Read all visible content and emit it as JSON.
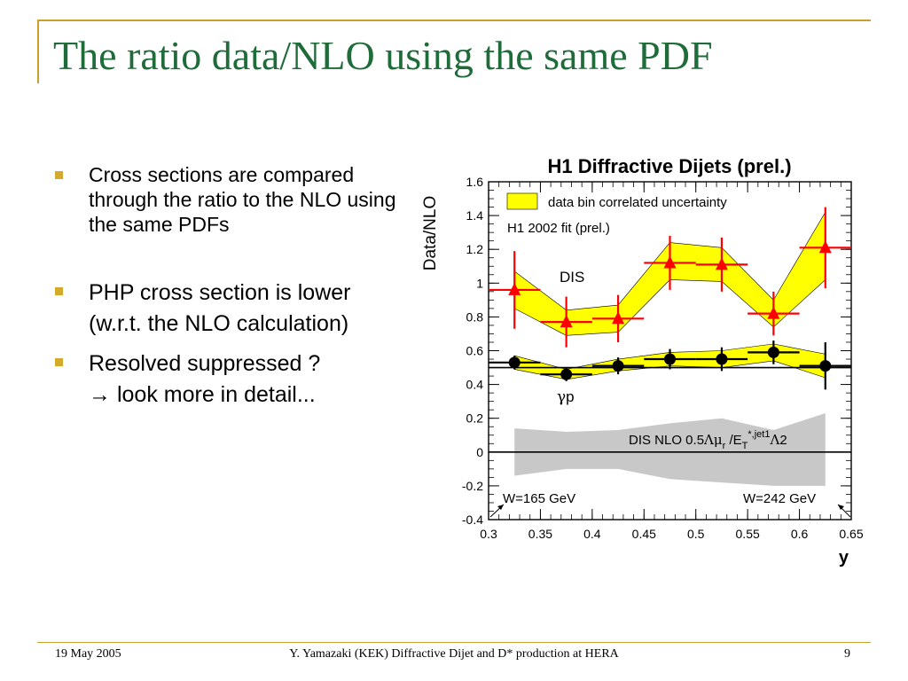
{
  "slide": {
    "title": "The ratio data/NLO using the same PDF",
    "bullets": [
      "Cross sections are compared through the ratio to the NLO using the same PDFs",
      "PHP cross section is lower (w.r.t. the NLO calculation)",
      "Resolved suppressed ?"
    ],
    "bullet3_arrow": "→",
    "bullet3_continuation": "look more in detail...",
    "footer": {
      "date": "19 May 2005",
      "center": "Y. Yamazaki (KEK) Diffractive Dijet and D* production at HERA",
      "page": "9"
    },
    "colors": {
      "title": "#1f6b3a",
      "accent": "#c9a12a",
      "band": "#ffff00",
      "nlo_band": "#c8c8c8",
      "dis": "#ff0000",
      "php": "#000000"
    }
  },
  "chart_data": {
    "type": "scatter",
    "title": "H1 Diffractive Dijets (prel.)",
    "xlabel": "y",
    "ylabel": "Data/NLO",
    "xlim": [
      0.3,
      0.65
    ],
    "ylim": [
      -0.4,
      1.6
    ],
    "xticks": [
      "0.3",
      "0.35",
      "0.4",
      "0.45",
      "0.5",
      "0.55",
      "0.6",
      "0.65"
    ],
    "yticks": [
      "-0.4",
      "-0.2",
      "0",
      "0.2",
      "0.4",
      "0.6",
      "0.8",
      "1",
      "1.2",
      "1.4",
      "1.6"
    ],
    "legend": {
      "band_label": "data bin correlated uncertainty",
      "fit_label": "H1 2002 fit (prel.)"
    },
    "series": [
      {
        "name": "DIS",
        "marker": "triangle",
        "x": [
          0.325,
          0.375,
          0.425,
          0.475,
          0.525,
          0.575,
          0.625
        ],
        "y": [
          0.96,
          0.77,
          0.79,
          1.12,
          1.11,
          0.82,
          1.21
        ],
        "xerr": [
          0.025,
          0.025,
          0.025,
          0.025,
          0.025,
          0.025,
          0.025
        ],
        "yerr": [
          0.23,
          0.15,
          0.14,
          0.16,
          0.16,
          0.13,
          0.24
        ],
        "band_low": [
          0.85,
          0.69,
          0.71,
          1.02,
          1.01,
          0.74,
          1.02
        ],
        "band_high": [
          1.07,
          0.84,
          0.87,
          1.24,
          1.21,
          0.9,
          1.42
        ]
      },
      {
        "name": "γp",
        "marker": "circle",
        "x": [
          0.325,
          0.375,
          0.425,
          0.475,
          0.525,
          0.575,
          0.625
        ],
        "y": [
          0.53,
          0.46,
          0.51,
          0.55,
          0.55,
          0.59,
          0.51
        ],
        "xerr": [
          0.025,
          0.025,
          0.025,
          0.025,
          0.025,
          0.025,
          0.025
        ],
        "yerr": [
          0.04,
          0.04,
          0.05,
          0.06,
          0.07,
          0.07,
          0.14
        ],
        "band_low": [
          0.49,
          0.43,
          0.48,
          0.51,
          0.5,
          0.54,
          0.44
        ],
        "band_high": [
          0.57,
          0.49,
          0.55,
          0.59,
          0.6,
          0.64,
          0.58
        ]
      }
    ],
    "nlo_uncertainty": {
      "label_prefix": "DIS NLO 0.5",
      "label_sym1": "Λ",
      "label_mu": "μ",
      "label_sub_r": "r",
      "label_slash": " /E",
      "label_sup": "*,jet1",
      "label_sub_t": "T",
      "label_sym2": "Λ",
      "label_suffix": "2",
      "x": [
        0.325,
        0.375,
        0.425,
        0.475,
        0.525,
        0.575,
        0.625
      ],
      "high": [
        0.14,
        0.12,
        0.13,
        0.17,
        0.2,
        0.13,
        0.23
      ],
      "low": [
        -0.14,
        -0.1,
        -0.1,
        -0.16,
        -0.18,
        -0.2,
        -0.2
      ]
    },
    "annotations": {
      "dis_label": "DIS",
      "php_label_sym": "γ",
      "php_label_rest": "p",
      "w_left": "W=165 GeV",
      "w_right": "W=242 GeV"
    }
  }
}
